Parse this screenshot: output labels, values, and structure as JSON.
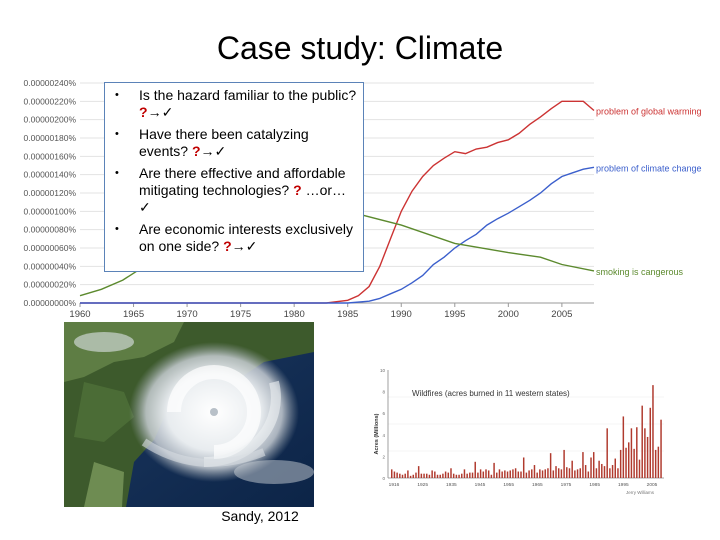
{
  "slide": {
    "title": "Case study: Climate",
    "caption": "Sandy, 2012"
  },
  "bullets": [
    {
      "text": "Is the hazard familiar to the public?",
      "mark_q": "?",
      "arrow": "→",
      "check": "✓"
    },
    {
      "text": "Have there been catalyzing events?",
      "mark_q": "?",
      "arrow": "→",
      "check": "✓"
    },
    {
      "text": "Are there effective and affordable mitigating technologies?",
      "mark_q": "?",
      "between": "…or…",
      "check": "✓"
    },
    {
      "text": "Are economic interests exclusively on one side?",
      "mark_q": "?",
      "arrow": "→",
      "check": "✓"
    }
  ],
  "chart_data": [
    {
      "type": "line",
      "title": "",
      "xlabel": "",
      "ylabel": "",
      "x_ticks": [
        "1960",
        "1965",
        "1970",
        "1975",
        "1980",
        "1985",
        "1990",
        "1995",
        "2000",
        "2005"
      ],
      "y_ticks": [
        "0.00000000%",
        "0.00000020%",
        "0.00000040%",
        "0.00000060%",
        "0.00000080%",
        "0.00000100%",
        "0.00000120%",
        "0.00000140%",
        "0.00000160%",
        "0.00000180%",
        "0.00000200%",
        "0.00000220%",
        "0.00000240%"
      ],
      "xlim": [
        1960,
        2008
      ],
      "ylim": [
        0,
        2.4e-06
      ],
      "colors": {
        "global_warming": "#cc3333",
        "climate_change": "#3b5fcc",
        "smoking": "#5c8a2e"
      },
      "series": [
        {
          "name": "problem of global warming",
          "key": "global_warming",
          "x": [
            1960,
            1970,
            1980,
            1983,
            1985,
            1986,
            1987,
            1988,
            1989,
            1990,
            1991,
            1992,
            1993,
            1994,
            1995,
            1996,
            1997,
            1998,
            1999,
            2000,
            2001,
            2002,
            2003,
            2004,
            2005,
            2006,
            2007,
            2008
          ],
          "y": [
            0,
            0,
            0,
            0,
            3e-08,
            8e-08,
            1.8e-07,
            4e-07,
            7e-07,
            1e-06,
            1.22e-06,
            1.38e-06,
            1.5e-06,
            1.58e-06,
            1.65e-06,
            1.63e-06,
            1.68e-06,
            1.7e-06,
            1.75e-06,
            1.78e-06,
            1.85e-06,
            1.95e-06,
            2.03e-06,
            2.12e-06,
            2.2e-06,
            2.2e-06,
            2.2e-06,
            2.1e-06
          ]
        },
        {
          "name": "problem of climate change",
          "key": "climate_change",
          "x": [
            1960,
            1980,
            1985,
            1987,
            1988,
            1989,
            1990,
            1991,
            1992,
            1993,
            1994,
            1995,
            1996,
            1997,
            1998,
            1999,
            2000,
            2001,
            2002,
            2003,
            2004,
            2005,
            2006,
            2007,
            2008
          ],
          "y": [
            0,
            0,
            0,
            2e-08,
            5e-08,
            1e-07,
            1.5e-07,
            2.2e-07,
            3e-07,
            4.2e-07,
            5e-07,
            6e-07,
            6.8e-07,
            7.5e-07,
            8.5e-07,
            9.2e-07,
            9.8e-07,
            1.05e-06,
            1.12e-06,
            1.2e-06,
            1.3e-06,
            1.38e-06,
            1.42e-06,
            1.46e-06,
            1.48e-06
          ]
        },
        {
          "name": "smoking is cangerous",
          "key": "smoking",
          "x": [
            1960,
            1962,
            1964,
            1966,
            1968,
            1970,
            1975,
            1980,
            1985,
            1990,
            1995,
            2000,
            2003,
            2005,
            2008
          ],
          "y": [
            8e-08,
            1.5e-07,
            2.5e-07,
            4e-07,
            6e-07,
            8.5e-07,
            1.1e-06,
            1.15e-06,
            1e-06,
            8.5e-07,
            6.5e-07,
            5.5e-07,
            5e-07,
            4.2e-07,
            3.5e-07
          ]
        }
      ]
    },
    {
      "type": "bar",
      "title": "Wildfires (acres burned in 11 western states)",
      "ylabel": "Acres (Millions)",
      "x_ticks": [
        "1916",
        "1925",
        "1935",
        "1945",
        "1955",
        "1965",
        "1975",
        "1985",
        "1995",
        "2005"
      ],
      "credit": "Jerry Williams",
      "colors": {
        "bar": "#b03a2e"
      },
      "ylim": [
        0,
        10
      ],
      "values": [
        0.8,
        0.6,
        0.5,
        0.4,
        0.3,
        0.4,
        0.7,
        0.2,
        0.3,
        0.5,
        1.1,
        0.4,
        0.4,
        0.4,
        0.3,
        0.7,
        0.6,
        0.3,
        0.3,
        0.4,
        0.6,
        0.5,
        0.9,
        0.4,
        0.3,
        0.3,
        0.4,
        0.8,
        0.4,
        0.5,
        0.5,
        1.5,
        0.5,
        0.8,
        0.6,
        0.8,
        0.7,
        0.3,
        1.4,
        0.5,
        0.8,
        0.6,
        0.7,
        0.6,
        0.7,
        0.8,
        0.9,
        0.6,
        0.6,
        1.9,
        0.5,
        0.7,
        0.8,
        1.2,
        0.5,
        0.8,
        0.7,
        0.8,
        0.9,
        2.3,
        0.7,
        1.1,
        0.9,
        0.8,
        2.6,
        1.0,
        0.9,
        1.6,
        0.7,
        0.8,
        0.9,
        2.4,
        1.2,
        0.6,
        1.9,
        2.4,
        0.9,
        1.6,
        1.3,
        1.1,
        4.6,
        0.9,
        1.2,
        1.8,
        0.9,
        2.6,
        5.7,
        2.8,
        3.3,
        4.6,
        2.7,
        4.7,
        1.7,
        6.7,
        4.6,
        3.8,
        6.5,
        8.6,
        2.6,
        2.9,
        5.4
      ]
    }
  ]
}
